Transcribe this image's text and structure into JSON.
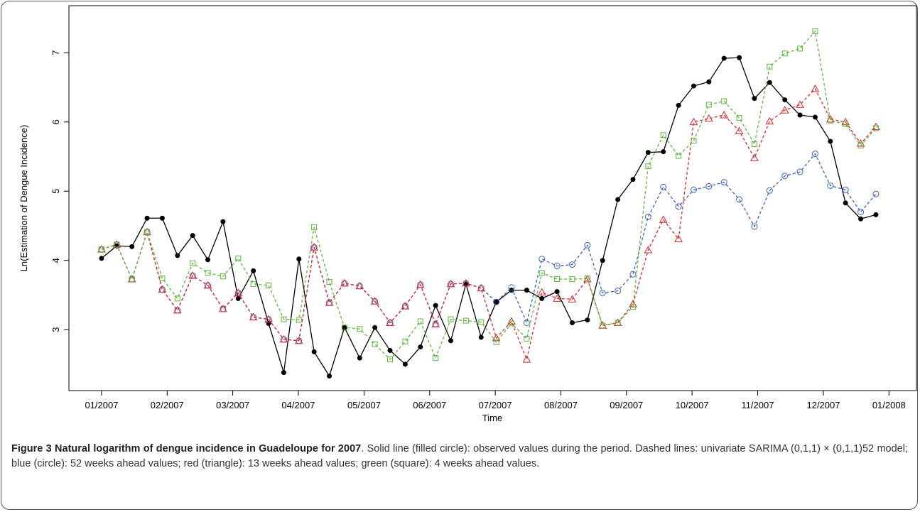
{
  "chart_data": {
    "type": "line",
    "x_label": "Time",
    "y_label": "Ln(Estimation of Dengue Incidence)",
    "x": [
      1,
      2,
      3,
      4,
      5,
      6,
      7,
      8,
      9,
      10,
      11,
      12,
      13,
      14,
      15,
      16,
      17,
      18,
      19,
      20,
      21,
      22,
      23,
      24,
      25,
      26,
      27,
      28,
      29,
      30,
      31,
      32,
      33,
      34,
      35,
      36,
      37,
      38,
      39,
      40,
      41,
      42,
      43,
      44,
      45,
      46,
      47,
      48,
      49,
      50,
      51,
      52
    ],
    "xlim": [
      -1.15,
      54.67
    ],
    "xticks": [
      {
        "value": 1,
        "label": "01/2007"
      },
      {
        "value": 5.32,
        "label": "02/2007"
      },
      {
        "value": 9.64,
        "label": "03/2007"
      },
      {
        "value": 13.96,
        "label": "04/2007"
      },
      {
        "value": 18.29,
        "label": "05/2007"
      },
      {
        "value": 22.61,
        "label": "06/2007"
      },
      {
        "value": 26.93,
        "label": "07/2007"
      },
      {
        "value": 31.25,
        "label": "08/2007"
      },
      {
        "value": 35.57,
        "label": "09/2007"
      },
      {
        "value": 39.89,
        "label": "10/2007"
      },
      {
        "value": 44.21,
        "label": "11/2007"
      },
      {
        "value": 48.54,
        "label": "12/2007"
      },
      {
        "value": 52.86,
        "label": "01/2008"
      }
    ],
    "ylim": [
      2.12,
      7.68
    ],
    "yticks": [
      3,
      4,
      5,
      6,
      7
    ],
    "series": [
      {
        "color": "#000000",
        "marker": "filled-circle",
        "dashed": false,
        "values": [
          4.03,
          4.21,
          4.2,
          4.61,
          4.61,
          4.07,
          4.36,
          4.01,
          4.56,
          3.45,
          3.85,
          3.09,
          2.38,
          4.02,
          2.68,
          2.33,
          3.03,
          2.59,
          3.03,
          2.7,
          2.5,
          2.75,
          3.35,
          2.84,
          3.66,
          2.89,
          3.4,
          3.57,
          3.57,
          3.45,
          3.55,
          3.1,
          3.14,
          4.0,
          4.88,
          5.17,
          5.56,
          5.57,
          6.24,
          6.52,
          6.58,
          6.92,
          6.93,
          6.34,
          6.57,
          6.32,
          6.1,
          6.07,
          5.72,
          4.83,
          4.6,
          4.66
        ]
      },
      {
        "color": "#3a62c4",
        "marker": "circle",
        "dashed": true,
        "values": [
          4.16,
          4.23,
          3.73,
          4.41,
          3.58,
          3.28,
          3.78,
          3.64,
          3.3,
          3.53,
          3.18,
          3.15,
          2.86,
          2.84,
          4.19,
          3.39,
          3.67,
          3.63,
          3.41,
          3.1,
          3.34,
          3.65,
          3.08,
          3.66,
          3.67,
          3.6,
          3.4,
          3.61,
          3.1,
          4.02,
          3.92,
          3.94,
          4.22,
          3.53,
          3.56,
          3.8,
          4.63,
          5.06,
          4.78,
          5.02,
          5.07,
          5.13,
          4.88,
          4.49,
          5.01,
          5.22,
          5.28,
          5.54,
          5.08,
          5.02,
          4.7,
          4.96
        ]
      },
      {
        "color": "#e0282e",
        "marker": "triangle",
        "dashed": true,
        "values": [
          4.16,
          4.23,
          3.73,
          4.41,
          3.58,
          3.28,
          3.78,
          3.64,
          3.3,
          3.53,
          3.18,
          3.15,
          2.86,
          2.84,
          4.19,
          3.39,
          3.67,
          3.63,
          3.41,
          3.1,
          3.34,
          3.65,
          3.08,
          3.66,
          3.67,
          3.6,
          2.88,
          3.12,
          2.57,
          3.54,
          3.45,
          3.44,
          3.73,
          3.06,
          3.1,
          3.37,
          4.15,
          4.59,
          4.31,
          6.0,
          6.05,
          6.1,
          5.87,
          5.48,
          6.01,
          6.17,
          6.25,
          6.48,
          6.04,
          6.0,
          5.69,
          5.93
        ]
      },
      {
        "color": "#5cb83a",
        "marker": "square",
        "dashed": true,
        "values": [
          4.16,
          4.23,
          3.73,
          4.41,
          3.74,
          3.45,
          3.96,
          3.82,
          3.77,
          4.03,
          3.66,
          3.64,
          3.15,
          3.14,
          4.48,
          3.69,
          3.03,
          3.01,
          2.79,
          2.57,
          2.83,
          3.12,
          2.59,
          3.15,
          3.13,
          3.11,
          2.82,
          3.09,
          2.87,
          3.82,
          3.73,
          3.73,
          3.74,
          3.06,
          3.1,
          3.33,
          5.36,
          5.81,
          5.51,
          5.73,
          6.25,
          6.3,
          6.06,
          5.68,
          6.8,
          6.99,
          7.06,
          7.31,
          6.02,
          5.97,
          5.66,
          5.91
        ]
      }
    ]
  },
  "caption": {
    "title": "Figure 3 Natural logarithm of dengue incidence in Guadeloupe for 2007",
    "text": ". Solid line (filled circle): observed values during the period. Dashed lines: univariate SARIMA (0,1,1) × (0,1,1)52 model; blue (circle): 52 weeks ahead values; red (triangle): 13 weeks ahead values; green (square): 4 weeks ahead values."
  }
}
